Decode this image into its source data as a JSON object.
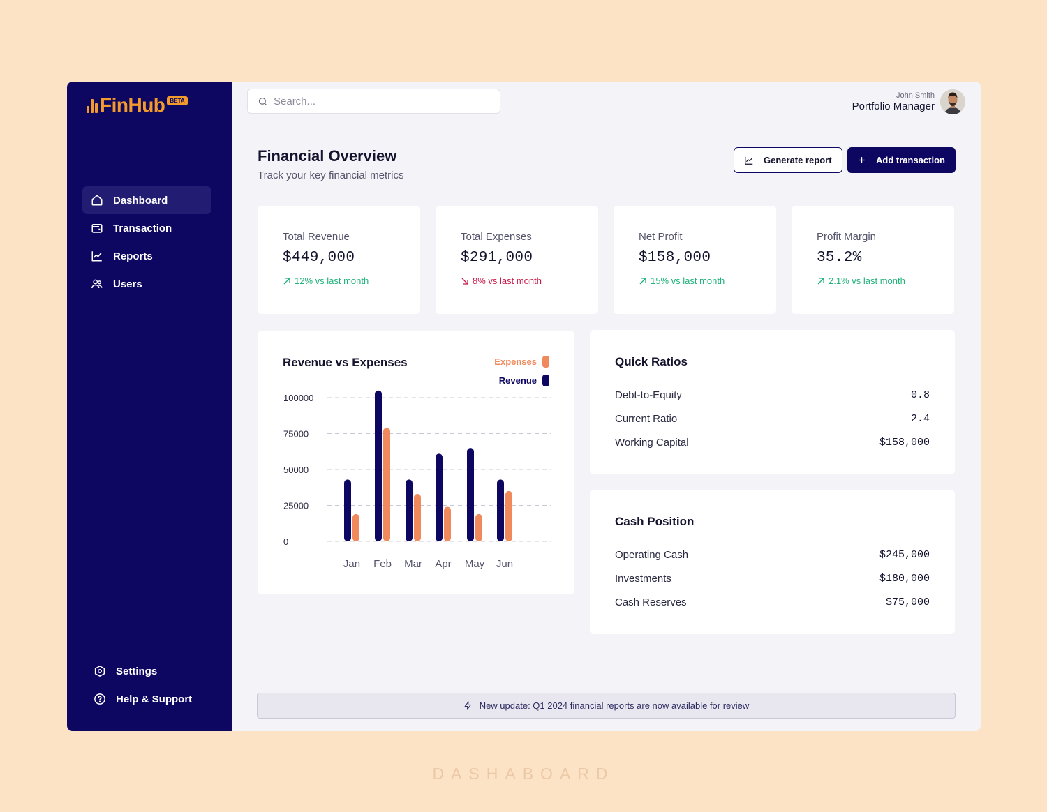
{
  "brand": {
    "name": "FinHub",
    "badge": "BETA",
    "color": "#f39a2c"
  },
  "sidebar": {
    "items": [
      {
        "label": "Dashboard",
        "icon": "home-icon",
        "active": true
      },
      {
        "label": "Transaction",
        "icon": "wallet-icon"
      },
      {
        "label": "Reports",
        "icon": "line-chart-icon"
      },
      {
        "label": "Users",
        "icon": "users-icon"
      }
    ],
    "bottom": [
      {
        "label": "Settings",
        "icon": "gear-icon"
      },
      {
        "label": "Help & Support",
        "icon": "help-icon"
      }
    ]
  },
  "search": {
    "placeholder": "Search..."
  },
  "user": {
    "name": "John Smith",
    "role": "Portfolio Manager"
  },
  "page": {
    "title": "Financial Overview",
    "subtitle": "Track your key financial metrics"
  },
  "actions": {
    "generate_report": "Generate report",
    "add_transaction": "Add transaction"
  },
  "stats": [
    {
      "label": "Total Revenue",
      "value": "$449,000",
      "trend": "12% vs last month",
      "direction": "up"
    },
    {
      "label": "Total Expenses",
      "value": "$291,000",
      "trend": "8% vs last month",
      "direction": "down"
    },
    {
      "label": "Net Profit",
      "value": "$158,000",
      "trend": "15% vs last month",
      "direction": "up"
    },
    {
      "label": "Profit Margin",
      "value": "35.2%",
      "trend": "2.1% vs last month",
      "direction": "up"
    }
  ],
  "chart": {
    "title": "Revenue vs Expenses"
  },
  "chart_data": {
    "type": "bar",
    "title": "Revenue vs Expenses",
    "categories": [
      "Jan",
      "Feb",
      "Mar",
      "Apr",
      "May",
      "Jun"
    ],
    "series": [
      {
        "name": "Revenue",
        "color": "#0e0762",
        "values": [
          43000,
          105000,
          43000,
          61000,
          65000,
          43000
        ]
      },
      {
        "name": "Expenses",
        "color": "#f0895c",
        "values": [
          19000,
          79000,
          33000,
          24000,
          19000,
          35000
        ]
      }
    ],
    "yticks": [
      0,
      25000,
      50000,
      75000,
      100000
    ],
    "ylim": [
      0,
      105000
    ],
    "grid": true,
    "legend": "top-right"
  },
  "quick_ratios": {
    "title": "Quick Ratios",
    "rows": [
      {
        "label": "Debt-to-Equity",
        "value": "0.8"
      },
      {
        "label": "Current Ratio",
        "value": "2.4"
      },
      {
        "label": "Working Capital",
        "value": "$158,000"
      }
    ]
  },
  "cash_position": {
    "title": "Cash Position",
    "rows": [
      {
        "label": "Operating Cash",
        "value": "$245,000"
      },
      {
        "label": "Investments",
        "value": "$180,000"
      },
      {
        "label": "Cash Reserves",
        "value": "$75,000"
      }
    ]
  },
  "banner": {
    "text": "New update: Q1 2024 financial reports are now available for review"
  },
  "footer": {
    "text": "DASHABOARD"
  }
}
